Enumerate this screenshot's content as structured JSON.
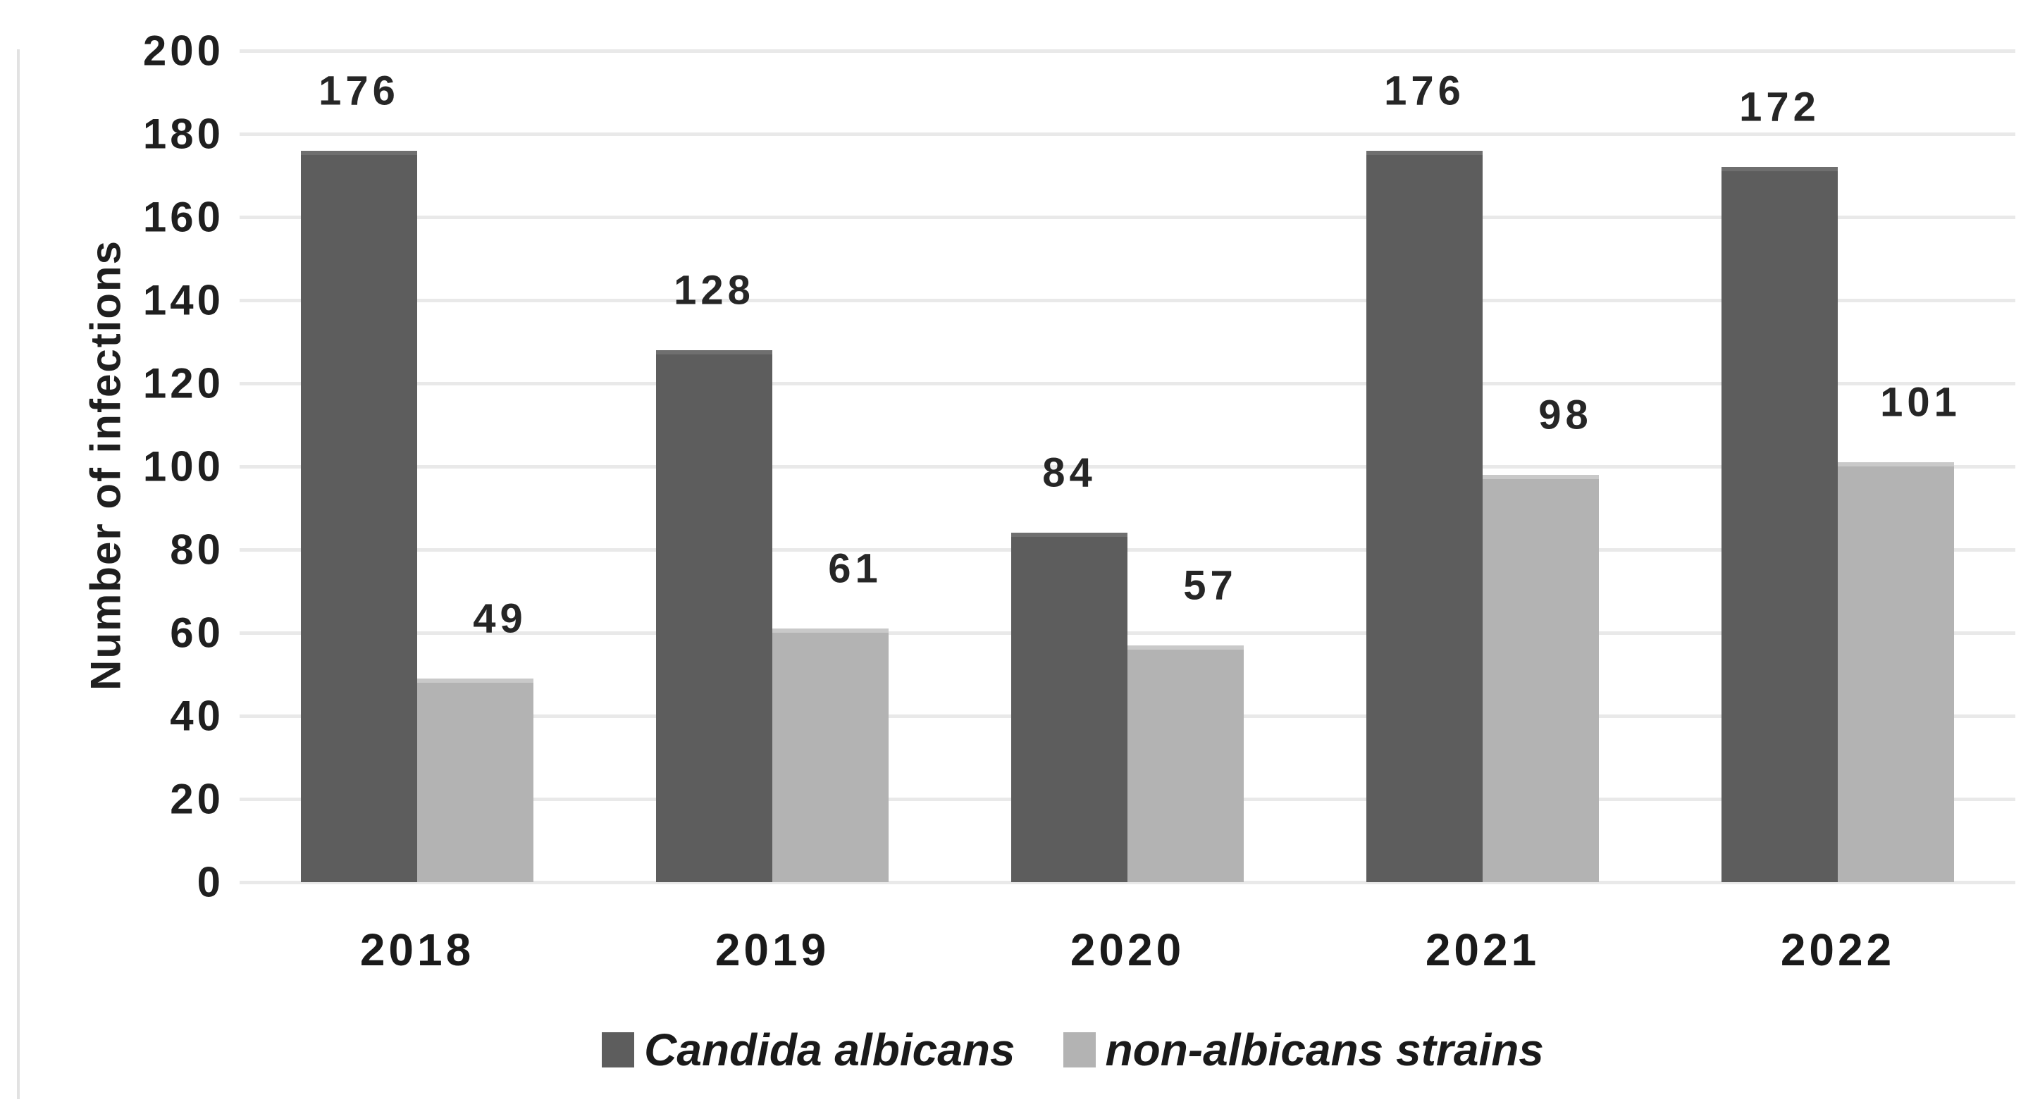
{
  "chart_data": {
    "type": "bar",
    "categories": [
      "2018",
      "2019",
      "2020",
      "2021",
      "2022"
    ],
    "series": [
      {
        "name": "Candida albicans",
        "values": [
          176,
          128,
          84,
          176,
          172
        ],
        "color": "#5d5d5d"
      },
      {
        "name": "non-albicans strains",
        "values": [
          49,
          61,
          57,
          98,
          101
        ],
        "color": "#b3b3b3"
      }
    ],
    "title": "",
    "xlabel": "",
    "ylabel": "Number of infections",
    "ylim": [
      0,
      200
    ],
    "ytick_step": 20,
    "yticks": [
      0,
      20,
      40,
      60,
      80,
      100,
      120,
      140,
      160,
      180,
      200
    ],
    "grid": true,
    "data_labels": true,
    "legend_position": "bottom"
  },
  "colors": {
    "background": "#ffffff",
    "gridline": "#e9e9e9",
    "text": "#1f1f1f",
    "data_label_text": "#262626",
    "edge_artifact_line": "#e2e2e2",
    "series_dark": "#5d5d5d",
    "series_light": "#b3b3b3"
  }
}
